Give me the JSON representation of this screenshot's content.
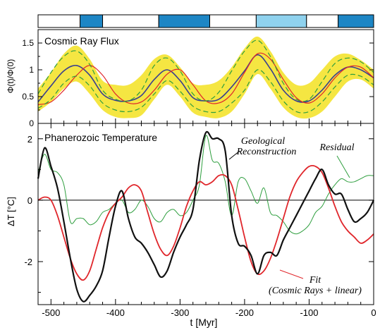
{
  "chart_data": [
    {
      "type": "line",
      "panel": "top",
      "title": "Cosmic Ray Flux",
      "ylabel": "Φ(t)/Φ(0)",
      "xlim": [
        -520,
        0
      ],
      "ylim": [
        0,
        1.75
      ],
      "yticks": [
        "0",
        "0.5",
        "1",
        "1.5"
      ],
      "grid": false,
      "colors": {
        "band": "#f5e642",
        "mean": "#3a3f8f",
        "fit": "#e0262b",
        "bounds": "#2e9e3e",
        "bar_dark": "#1d86c5",
        "bar_light": "#8fd2ee"
      },
      "period_bars": [
        {
          "start": -520,
          "end": -455,
          "shade": "white"
        },
        {
          "start": -455,
          "end": -420,
          "shade": "dark"
        },
        {
          "start": -420,
          "end": -333,
          "shade": "white"
        },
        {
          "start": -333,
          "end": -254,
          "shade": "dark"
        },
        {
          "start": -254,
          "end": -182,
          "shade": "white"
        },
        {
          "start": -182,
          "end": -104,
          "shade": "light"
        },
        {
          "start": -104,
          "end": -55,
          "shade": "white"
        },
        {
          "start": -55,
          "end": 0,
          "shade": "dark"
        }
      ],
      "band": {
        "x": [
          -520,
          -500,
          -480,
          -460,
          -440,
          -420,
          -400,
          -380,
          -360,
          -340,
          -320,
          -300,
          -280,
          -260,
          -240,
          -220,
          -200,
          -180,
          -160,
          -140,
          -120,
          -100,
          -80,
          -60,
          -40,
          -20,
          0
        ],
        "lower": [
          0.22,
          0.4,
          0.65,
          0.78,
          0.55,
          0.25,
          0.12,
          0.1,
          0.15,
          0.45,
          0.72,
          0.5,
          0.2,
          0.12,
          0.1,
          0.22,
          0.55,
          0.92,
          0.65,
          0.3,
          0.12,
          0.1,
          0.22,
          0.5,
          0.78,
          0.82,
          0.65
        ],
        "upper": [
          0.65,
          0.95,
          1.3,
          1.45,
          1.2,
          0.8,
          0.72,
          0.72,
          0.9,
          1.2,
          1.28,
          1.05,
          0.75,
          0.72,
          0.8,
          1.05,
          1.4,
          1.62,
          1.35,
          0.95,
          0.72,
          0.75,
          1.0,
          1.25,
          1.3,
          1.18,
          1.0
        ]
      },
      "series": [
        {
          "role": "mean",
          "x": [
            -520,
            -500,
            -480,
            -460,
            -440,
            -420,
            -400,
            -380,
            -360,
            -340,
            -320,
            -300,
            -280,
            -260,
            -240,
            -220,
            -200,
            -180,
            -160,
            -140,
            -120,
            -100,
            -80,
            -60,
            -40,
            -20,
            0
          ],
          "y": [
            0.4,
            0.7,
            0.98,
            1.08,
            0.9,
            0.55,
            0.43,
            0.42,
            0.52,
            0.82,
            1.0,
            0.8,
            0.48,
            0.42,
            0.45,
            0.68,
            0.98,
            1.28,
            1.02,
            0.62,
            0.42,
            0.42,
            0.62,
            0.9,
            1.05,
            1.0,
            0.85
          ]
        },
        {
          "role": "fit",
          "x": [
            -520,
            -500,
            -480,
            -460,
            -440,
            -420,
            -400,
            -380,
            -360,
            -340,
            -320,
            -300,
            -280,
            -260,
            -240,
            -220,
            -200,
            -180,
            -160,
            -140,
            -120,
            -100,
            -80,
            -60,
            -40,
            -20,
            0
          ],
          "y": [
            0.35,
            0.4,
            0.62,
            0.9,
            1.08,
            0.9,
            0.55,
            0.38,
            0.4,
            0.62,
            0.92,
            1.0,
            0.72,
            0.42,
            0.38,
            0.55,
            0.95,
            1.3,
            1.2,
            0.82,
            0.48,
            0.38,
            0.55,
            0.85,
            1.05,
            1.05,
            0.85
          ]
        },
        {
          "role": "upper-bound",
          "x": [
            -520,
            -500,
            -480,
            -460,
            -440,
            -420,
            -400,
            -380,
            -360,
            -340,
            -320,
            -300,
            -280,
            -260,
            -240,
            -220,
            -200,
            -180,
            -160,
            -140,
            -120,
            -100,
            -80,
            -60,
            -40,
            -20,
            0
          ],
          "y": [
            0.55,
            0.95,
            1.25,
            1.35,
            1.1,
            0.62,
            0.45,
            0.42,
            0.62,
            1.08,
            1.22,
            0.98,
            0.55,
            0.42,
            0.58,
            0.98,
            1.35,
            1.55,
            1.25,
            0.75,
            0.45,
            0.45,
            0.78,
            1.12,
            1.22,
            1.15,
            0.95
          ]
        },
        {
          "role": "lower-bound",
          "x": [
            -520,
            -500,
            -480,
            -460,
            -440,
            -420,
            -400,
            -380,
            -360,
            -340,
            -320,
            -300,
            -280,
            -260,
            -240,
            -220,
            -200,
            -180,
            -160,
            -140,
            -120,
            -100,
            -80,
            -60,
            -40,
            -20,
            0
          ],
          "y": [
            0.28,
            0.45,
            0.75,
            0.88,
            0.7,
            0.38,
            0.25,
            0.22,
            0.3,
            0.55,
            0.8,
            0.6,
            0.32,
            0.22,
            0.22,
            0.38,
            0.62,
            1.0,
            0.78,
            0.42,
            0.22,
            0.22,
            0.4,
            0.68,
            0.9,
            0.88,
            0.72
          ]
        }
      ]
    },
    {
      "type": "line",
      "panel": "bottom",
      "title": "Phanerozoic Temperature",
      "xlabel": "t [Myr]",
      "ylabel": "ΔT [°C]",
      "xlim": [
        -520,
        0
      ],
      "ylim": [
        -3.4,
        2.5
      ],
      "xticks": [
        "-500",
        "-400",
        "-300",
        "-200",
        "-100",
        "0"
      ],
      "yticks": [
        "-2",
        "0",
        "2"
      ],
      "grid": false,
      "zero_line": true,
      "annotations": [
        {
          "lines": [
            "Geological",
            "Reconstruction"
          ],
          "target": "geological"
        },
        {
          "lines": [
            "Residual"
          ],
          "target": "residual"
        },
        {
          "lines": [
            "Fit",
            "(Cosmic Rays + linear)"
          ],
          "target": "fit"
        }
      ],
      "series": [
        {
          "role": "geological",
          "color": "#111111",
          "x": [
            -520,
            -510,
            -500,
            -490,
            -480,
            -470,
            -460,
            -450,
            -440,
            -430,
            -420,
            -410,
            -400,
            -390,
            -380,
            -370,
            -360,
            -350,
            -340,
            -330,
            -320,
            -310,
            -300,
            -290,
            -280,
            -270,
            -260,
            -250,
            -240,
            -230,
            -220,
            -210,
            -200,
            -190,
            -180,
            -170,
            -160,
            -150,
            -140,
            -130,
            -120,
            -110,
            -100,
            -90,
            -80,
            -70,
            -60,
            -50,
            -40,
            -30,
            -20,
            -10,
            0
          ],
          "y": [
            0.7,
            1.7,
            1.1,
            0.4,
            -0.7,
            -1.9,
            -2.9,
            -3.3,
            -3.1,
            -2.8,
            -2.3,
            -1.2,
            -0.2,
            0.3,
            -0.6,
            -1.2,
            -1.4,
            -1.7,
            -2.1,
            -2.5,
            -2.3,
            -1.7,
            -1.2,
            -0.8,
            -0.3,
            1.3,
            2.2,
            2.0,
            2.0,
            1.6,
            -0.5,
            -1.4,
            -1.5,
            -1.8,
            -2.4,
            -1.8,
            -1.7,
            -1.8,
            -1.3,
            -0.9,
            -0.5,
            -0.1,
            0.3,
            0.7,
            1.0,
            0.5,
            0.2,
            0.2,
            -0.3,
            -0.7,
            -0.6,
            -0.4,
            0.0
          ]
        },
        {
          "role": "fit",
          "color": "#e0262b",
          "x": [
            -520,
            -510,
            -500,
            -490,
            -480,
            -470,
            -460,
            -450,
            -440,
            -430,
            -420,
            -410,
            -400,
            -390,
            -380,
            -370,
            -360,
            -350,
            -340,
            -330,
            -320,
            -310,
            -300,
            -290,
            -280,
            -270,
            -260,
            -250,
            -240,
            -230,
            -220,
            -210,
            -200,
            -190,
            -180,
            -170,
            -160,
            -150,
            -140,
            -130,
            -120,
            -110,
            -100,
            -90,
            -80,
            -70,
            -60,
            -50,
            -40,
            -30,
            -20,
            -10,
            0
          ],
          "y": [
            0.0,
            0.1,
            0.0,
            -0.5,
            -1.2,
            -1.9,
            -2.4,
            -2.6,
            -2.3,
            -1.6,
            -0.9,
            -0.4,
            -0.1,
            0.1,
            0.4,
            0.5,
            0.3,
            -0.4,
            -1.1,
            -1.6,
            -1.8,
            -1.5,
            -0.9,
            -0.2,
            0.3,
            0.6,
            0.5,
            0.6,
            0.8,
            0.8,
            0.5,
            -0.3,
            -1.2,
            -2.0,
            -2.4,
            -2.3,
            -1.9,
            -1.3,
            -0.6,
            0.1,
            0.6,
            0.9,
            1.1,
            1.1,
            0.9,
            0.4,
            -0.2,
            -0.7,
            -1.0,
            -1.2,
            -1.4,
            -1.3,
            -1.1
          ]
        },
        {
          "role": "residual",
          "color": "#2e9e3e",
          "x": [
            -520,
            -510,
            -500,
            -490,
            -480,
            -470,
            -460,
            -450,
            -440,
            -430,
            -420,
            -410,
            -400,
            -390,
            -380,
            -370,
            -360,
            -350,
            -340,
            -330,
            -320,
            -310,
            -300,
            -290,
            -280,
            -270,
            -260,
            -250,
            -240,
            -230,
            -220,
            -210,
            -200,
            -190,
            -180,
            -170,
            -160,
            -150,
            -140,
            -130,
            -120,
            -110,
            -100,
            -90,
            -80,
            -70,
            -60,
            -50,
            -40,
            -30,
            -20,
            -10,
            0
          ],
          "y": [
            0.9,
            1.5,
            1.0,
            0.9,
            0.5,
            -0.7,
            -0.6,
            -0.6,
            -0.8,
            -0.7,
            -0.4,
            -0.3,
            -0.1,
            0.0,
            -0.4,
            -0.3,
            0.0,
            -0.2,
            -0.6,
            -0.7,
            -0.4,
            -0.3,
            -0.5,
            -0.4,
            0.0,
            0.5,
            2.1,
            1.3,
            1.2,
            0.6,
            -0.5,
            0.6,
            0.7,
            0.3,
            -0.1,
            0.4,
            -0.4,
            -0.5,
            -0.7,
            -1.0,
            -1.1,
            -1.0,
            -0.8,
            -0.4,
            -0.2,
            0.2,
            0.5,
            0.7,
            0.6,
            0.6,
            0.7,
            0.8,
            0.8
          ]
        }
      ]
    }
  ]
}
